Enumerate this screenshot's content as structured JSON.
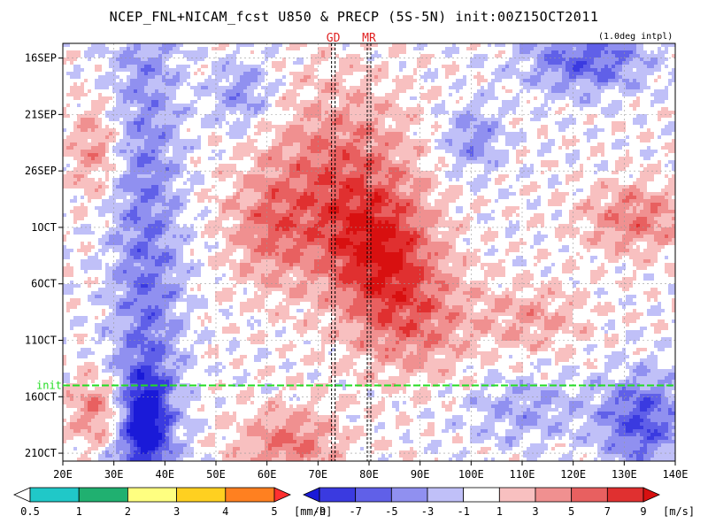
{
  "title": "NCEP_FNL+NICAM_fcst U850 & PRECP (5S-5N) init:00Z15OCT2011",
  "interp_note": "(1.0deg intpl)",
  "markers": [
    {
      "label": "GD",
      "lon": 73
    },
    {
      "label": "MR",
      "lon": 80
    }
  ],
  "init_line": {
    "label": "init",
    "color": "#22dd22",
    "date_index": 30
  },
  "chart_data": {
    "type": "heatmap",
    "title": "NCEP_FNL+NICAM_fcst U850 & PRECP (5S-5N) init:00Z15OCT2011",
    "x_axis": {
      "ticks": [
        "20E",
        "30E",
        "40E",
        "50E",
        "60E",
        "70E",
        "80E",
        "90E",
        "100E",
        "110E",
        "120E",
        "130E",
        "140E"
      ],
      "range": [
        20,
        140
      ],
      "unit": "longitude"
    },
    "y_axis": {
      "ticks": [
        "16SEP",
        "21SEP",
        "26SEP",
        "1OCT",
        "6OCT",
        "11OCT",
        "16OCT",
        "21OCT"
      ],
      "range": [
        "15SEP2011",
        "22OCT2011"
      ],
      "direction": "time increases downward"
    },
    "grid": true,
    "u850_colorbar": {
      "unit": "[m/s]",
      "labels": [
        "-9",
        "-7",
        "-5",
        "-3",
        "-1",
        "1",
        "3",
        "5",
        "7",
        "9"
      ],
      "colors": [
        "#1a1ad8",
        "#3a3ae0",
        "#6060e8",
        "#9090f0",
        "#c0c0f8",
        "#ffffff",
        "#f8c0c0",
        "#f09090",
        "#e86060",
        "#e03030",
        "#d81010"
      ]
    },
    "precip_colorbar": {
      "unit": "[mm/h]",
      "labels": [
        "0.5",
        "1",
        "2",
        "3",
        "4",
        "5"
      ],
      "colors": [
        "#ffffff",
        "#20c8c8",
        "#20b070",
        "#ffff80",
        "#ffd020",
        "#ff8020",
        "#ff3030"
      ]
    },
    "u850_fields": [
      {
        "lon": 36,
        "date_index": 25,
        "half_width_lon": 7,
        "half_height_days": 40,
        "value": -5
      },
      {
        "lon": 36,
        "date_index": 33,
        "half_width_lon": 4,
        "half_height_days": 4,
        "value": -8
      },
      {
        "lon": 74,
        "date_index": 12,
        "half_width_lon": 14,
        "half_height_days": 8,
        "value": 6
      },
      {
        "lon": 82,
        "date_index": 18,
        "half_width_lon": 10,
        "half_height_days": 5,
        "value": 7
      },
      {
        "lon": 88,
        "date_index": 24,
        "half_width_lon": 12,
        "half_height_days": 5,
        "value": 5
      },
      {
        "lon": 60,
        "date_index": 16,
        "half_width_lon": 8,
        "half_height_days": 5,
        "value": 4
      },
      {
        "lon": 26,
        "date_index": 32,
        "half_width_lon": 5,
        "half_height_days": 3,
        "value": 5
      },
      {
        "lon": 122,
        "date_index": 1,
        "half_width_lon": 12,
        "half_height_days": 3,
        "value": -6
      },
      {
        "lon": 133,
        "date_index": 33,
        "half_width_lon": 8,
        "half_height_days": 4,
        "value": -7
      },
      {
        "lon": 132,
        "date_index": 15,
        "half_width_lon": 10,
        "half_height_days": 3,
        "value": 5
      },
      {
        "lon": 112,
        "date_index": 24,
        "half_width_lon": 10,
        "half_height_days": 3,
        "value": 3
      },
      {
        "lon": 64,
        "date_index": 35,
        "half_width_lon": 10,
        "half_height_days": 3,
        "value": 5
      },
      {
        "lon": 26,
        "date_index": 9,
        "half_width_lon": 5,
        "half_height_days": 4,
        "value": 4
      },
      {
        "lon": 100,
        "date_index": 8,
        "half_width_lon": 6,
        "half_height_days": 3,
        "value": -4
      },
      {
        "lon": 55,
        "date_index": 4,
        "half_width_lon": 6,
        "half_height_days": 3,
        "value": -4
      },
      {
        "lon": 110,
        "date_index": 32,
        "half_width_lon": 12,
        "half_height_days": 3,
        "value": -3
      }
    ]
  }
}
